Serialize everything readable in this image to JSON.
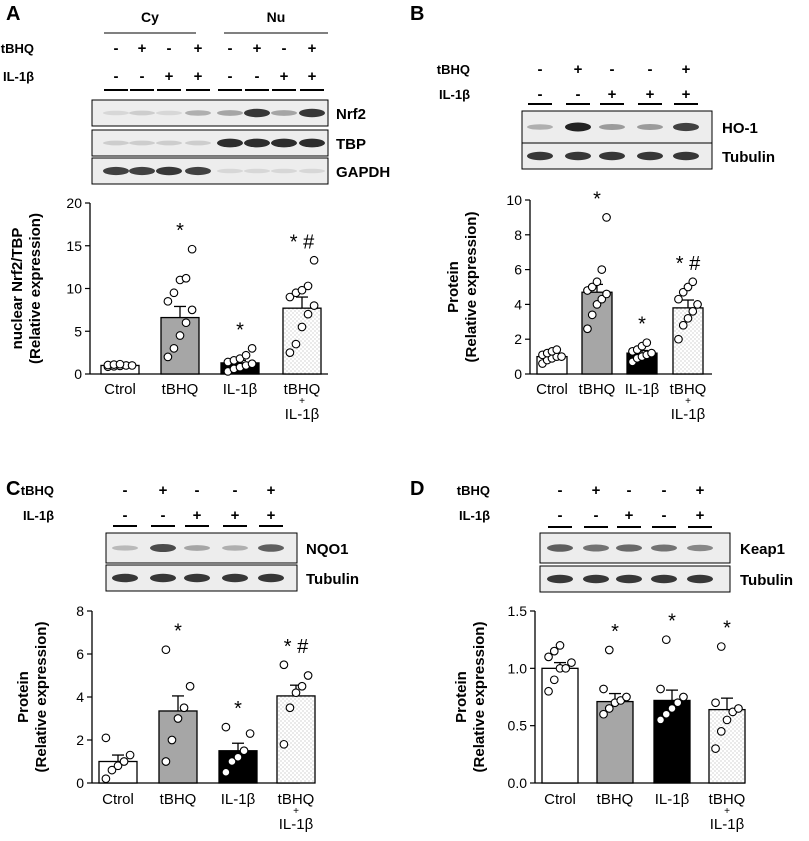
{
  "panels": [
    {
      "id": "A",
      "letter": "A",
      "fractions": [
        "Cy",
        "Nu"
      ],
      "row_labels": [
        "tBHQ",
        "IL-1β"
      ],
      "signs": [
        [
          "-",
          "+",
          "-",
          "+",
          "-",
          "+",
          "-",
          "+"
        ],
        [
          "-",
          "-",
          "+",
          "+",
          "-",
          "-",
          "+",
          "+"
        ]
      ],
      "blots": [
        "Nrf2",
        "TBP",
        "GAPDH"
      ],
      "chart_data": {
        "type": "bar",
        "categories": [
          "Ctrol",
          "tBHQ",
          "IL-1β",
          "tBHQ + IL-1β"
        ],
        "values": [
          1.0,
          6.6,
          1.3,
          7.7
        ],
        "errors": [
          0.1,
          1.3,
          0.3,
          1.3
        ],
        "points": [
          [
            0.85,
            0.9,
            0.95,
            1.0,
            1.0,
            1.05,
            1.1,
            1.15
          ],
          [
            2.0,
            3.0,
            4.5,
            6.0,
            7.5,
            8.5,
            9.5,
            11.0,
            11.2,
            14.6
          ],
          [
            0.3,
            0.6,
            0.8,
            1.0,
            1.2,
            1.4,
            1.6,
            1.8,
            2.2,
            3.0
          ],
          [
            2.5,
            3.5,
            5.5,
            7.0,
            8.0,
            9.0,
            9.5,
            9.8,
            10.3,
            13.3
          ]
        ],
        "annotations": [
          "",
          "*",
          "*",
          "* #"
        ],
        "ylabel": "nuclear Nrf2/TBP (Relative expression)",
        "ylim": [
          0,
          20
        ],
        "yticks": [
          0,
          5,
          10,
          15,
          20
        ],
        "bar_colors": [
          "#ffffff",
          "#a6a6a6",
          "#000000",
          "dotted"
        ]
      }
    },
    {
      "id": "B",
      "letter": "B",
      "row_labels": [
        "tBHQ",
        "IL-1β"
      ],
      "signs": [
        [
          "-",
          "+",
          "-",
          "-",
          "+"
        ],
        [
          "-",
          "-",
          "+",
          "+",
          "+"
        ]
      ],
      "blots": [
        "HO-1",
        "Tubulin"
      ],
      "chart_data": {
        "type": "bar",
        "categories": [
          "Ctrol",
          "tBHQ",
          "IL-1β",
          "tBHQ + IL-1β"
        ],
        "values": [
          1.0,
          4.7,
          1.2,
          3.8
        ],
        "errors": [
          0.1,
          0.45,
          0.15,
          0.45
        ],
        "points": [
          [
            0.6,
            0.8,
            0.9,
            1.0,
            1.0,
            1.1,
            1.2,
            1.3,
            1.4
          ],
          [
            2.6,
            3.4,
            4.0,
            4.3,
            4.6,
            4.8,
            5.0,
            5.3,
            6.0,
            9.0
          ],
          [
            0.7,
            0.9,
            1.0,
            1.1,
            1.2,
            1.3,
            1.4,
            1.6,
            1.8
          ],
          [
            2.0,
            2.8,
            3.2,
            3.6,
            4.0,
            4.3,
            4.7,
            5.0,
            5.3
          ]
        ],
        "annotations": [
          "",
          "*",
          "*",
          "* #"
        ],
        "ylabel": "Protein (Relative expression)",
        "ylim": [
          0,
          10
        ],
        "yticks": [
          0,
          2,
          4,
          6,
          8,
          10
        ],
        "bar_colors": [
          "#ffffff",
          "#a6a6a6",
          "#000000",
          "dotted"
        ]
      }
    },
    {
      "id": "C",
      "letter": "C",
      "row_labels": [
        "tBHQ",
        "IL-1β"
      ],
      "signs": [
        [
          "-",
          "+",
          "-",
          "-",
          "+"
        ],
        [
          "-",
          "-",
          "+",
          "+",
          "+"
        ]
      ],
      "blots": [
        "NQO1",
        "Tubulin"
      ],
      "chart_data": {
        "type": "bar",
        "categories": [
          "Ctrol",
          "tBHQ",
          "IL-1β",
          "tBHQ + IL-1β"
        ],
        "values": [
          1.0,
          3.35,
          1.5,
          4.05
        ],
        "errors": [
          0.3,
          0.7,
          0.35,
          0.5
        ],
        "points": [
          [
            0.2,
            0.6,
            0.8,
            1.0,
            1.3,
            2.1
          ],
          [
            1.0,
            2.0,
            3.0,
            3.5,
            4.5,
            6.2
          ],
          [
            0.5,
            1.0,
            1.2,
            1.5,
            2.3,
            2.6
          ],
          [
            1.8,
            3.5,
            4.2,
            4.5,
            5.0,
            5.5
          ]
        ],
        "annotations": [
          "",
          "*",
          "*",
          "* #"
        ],
        "ylabel": "Protein (Relative expression)",
        "ylim": [
          0,
          8
        ],
        "yticks": [
          0,
          2,
          4,
          6,
          8
        ],
        "bar_colors": [
          "#ffffff",
          "#a6a6a6",
          "#000000",
          "dotted"
        ]
      }
    },
    {
      "id": "D",
      "letter": "D",
      "row_labels": [
        "tBHQ",
        "IL-1β"
      ],
      "signs": [
        [
          "-",
          "+",
          "-",
          "-",
          "+"
        ],
        [
          "-",
          "-",
          "+",
          "-",
          "+"
        ]
      ],
      "blots": [
        "Keap1",
        "Tubulin"
      ],
      "chart_data": {
        "type": "bar",
        "categories": [
          "Ctrol",
          "tBHQ",
          "IL-1β",
          "tBHQ + IL-1β"
        ],
        "values": [
          1.0,
          0.71,
          0.72,
          0.64
        ],
        "errors": [
          0.05,
          0.07,
          0.09,
          0.1
        ],
        "points": [
          [
            0.8,
            0.9,
            1.0,
            1.0,
            1.05,
            1.1,
            1.15,
            1.2
          ],
          [
            0.6,
            0.65,
            0.7,
            0.72,
            0.75,
            0.82,
            1.16
          ],
          [
            0.55,
            0.6,
            0.65,
            0.7,
            0.75,
            0.82,
            1.25
          ],
          [
            0.3,
            0.45,
            0.55,
            0.62,
            0.65,
            0.7,
            1.19
          ]
        ],
        "annotations": [
          "",
          "*",
          "*",
          "*"
        ],
        "ylabel": "Protein (Relative expression)",
        "ylim": [
          0,
          1.5
        ],
        "yticks": [
          "0.0",
          "0.5",
          "1.0",
          "1.5"
        ],
        "bar_colors": [
          "#ffffff",
          "#a6a6a6",
          "#000000",
          "dotted"
        ]
      }
    }
  ]
}
